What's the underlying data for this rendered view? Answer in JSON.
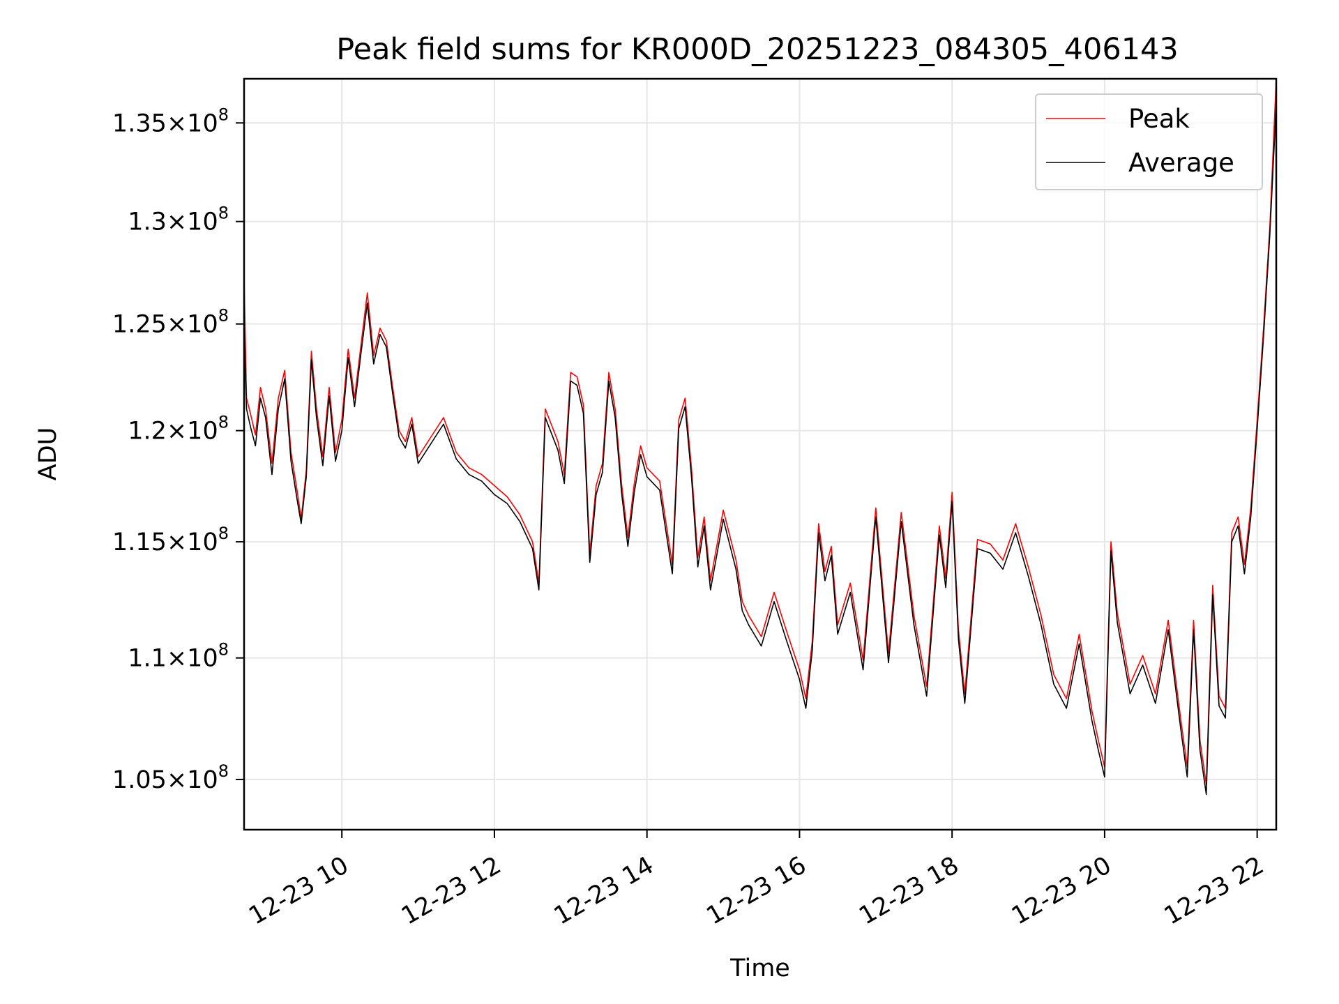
{
  "chart_data": {
    "type": "line",
    "title": "Peak field sums for KR000D_20251223_084305_406143",
    "xlabel": "Time",
    "ylabel": "ADU",
    "x_axis_type": "datetime",
    "x_range": [
      "2025-12-23T08:43:05",
      "2025-12-23T22:15:00"
    ],
    "y_scale": "log",
    "ylim": [
      103000000,
      137300000
    ],
    "grid": true,
    "legend_position": "upper right",
    "x_ticks": [
      {
        "t": "2025-12-23T10:00:00",
        "label": "12-23 10"
      },
      {
        "t": "2025-12-23T12:00:00",
        "label": "12-23 12"
      },
      {
        "t": "2025-12-23T14:00:00",
        "label": "12-23 14"
      },
      {
        "t": "2025-12-23T16:00:00",
        "label": "12-23 16"
      },
      {
        "t": "2025-12-23T18:00:00",
        "label": "12-23 18"
      },
      {
        "t": "2025-12-23T20:00:00",
        "label": "12-23 20"
      },
      {
        "t": "2025-12-23T22:00:00",
        "label": "12-23 22"
      }
    ],
    "y_ticks": [
      {
        "value": 105000000,
        "mantissa": "1.05",
        "exp": "8"
      },
      {
        "value": 110000000,
        "mantissa": "1.1",
        "exp": "8"
      },
      {
        "value": 115000000,
        "mantissa": "1.15",
        "exp": "8"
      },
      {
        "value": 120000000,
        "mantissa": "1.2",
        "exp": "8"
      },
      {
        "value": 125000000,
        "mantissa": "1.25",
        "exp": "8"
      },
      {
        "value": 130000000,
        "mantissa": "1.3",
        "exp": "8"
      },
      {
        "value": 135000000,
        "mantissa": "1.35",
        "exp": "8"
      }
    ],
    "series": [
      {
        "name": "Peak",
        "color": "#ff0000",
        "x": [
          "2025-12-23T08:43:05",
          "2025-12-23T08:45",
          "2025-12-23T08:48",
          "2025-12-23T08:52",
          "2025-12-23T08:56",
          "2025-12-23T09:00",
          "2025-12-23T09:05",
          "2025-12-23T09:10",
          "2025-12-23T09:15",
          "2025-12-23T09:20",
          "2025-12-23T09:25",
          "2025-12-23T09:28",
          "2025-12-23T09:32",
          "2025-12-23T09:36",
          "2025-12-23T09:40",
          "2025-12-23T09:45",
          "2025-12-23T09:50",
          "2025-12-23T09:55",
          "2025-12-23T10:00",
          "2025-12-23T10:05",
          "2025-12-23T10:10",
          "2025-12-23T10:15",
          "2025-12-23T10:20",
          "2025-12-23T10:25",
          "2025-12-23T10:30",
          "2025-12-23T10:35",
          "2025-12-23T10:40",
          "2025-12-23T10:45",
          "2025-12-23T10:50",
          "2025-12-23T10:55",
          "2025-12-23T11:00",
          "2025-12-23T11:10",
          "2025-12-23T11:20",
          "2025-12-23T11:30",
          "2025-12-23T11:40",
          "2025-12-23T11:50",
          "2025-12-23T12:00",
          "2025-12-23T12:10",
          "2025-12-23T12:20",
          "2025-12-23T12:30",
          "2025-12-23T12:35",
          "2025-12-23T12:40",
          "2025-12-23T12:50",
          "2025-12-23T12:55",
          "2025-12-23T13:00",
          "2025-12-23T13:05",
          "2025-12-23T13:10",
          "2025-12-23T13:15",
          "2025-12-23T13:20",
          "2025-12-23T13:25",
          "2025-12-23T13:30",
          "2025-12-23T13:35",
          "2025-12-23T13:40",
          "2025-12-23T13:45",
          "2025-12-23T13:50",
          "2025-12-23T13:55",
          "2025-12-23T14:00",
          "2025-12-23T14:10",
          "2025-12-23T14:20",
          "2025-12-23T14:25",
          "2025-12-23T14:30",
          "2025-12-23T14:35",
          "2025-12-23T14:40",
          "2025-12-23T14:45",
          "2025-12-23T14:50",
          "2025-12-23T15:00",
          "2025-12-23T15:10",
          "2025-12-23T15:15",
          "2025-12-23T15:20",
          "2025-12-23T15:30",
          "2025-12-23T15:40",
          "2025-12-23T15:50",
          "2025-12-23T16:00",
          "2025-12-23T16:05",
          "2025-12-23T16:10",
          "2025-12-23T16:15",
          "2025-12-23T16:20",
          "2025-12-23T16:25",
          "2025-12-23T16:30",
          "2025-12-23T16:40",
          "2025-12-23T16:50",
          "2025-12-23T17:00",
          "2025-12-23T17:10",
          "2025-12-23T17:20",
          "2025-12-23T17:30",
          "2025-12-23T17:40",
          "2025-12-23T17:50",
          "2025-12-23T17:55",
          "2025-12-23T18:00",
          "2025-12-23T18:05",
          "2025-12-23T18:10",
          "2025-12-23T18:20",
          "2025-12-23T18:30",
          "2025-12-23T18:40",
          "2025-12-23T18:50",
          "2025-12-23T19:00",
          "2025-12-23T19:10",
          "2025-12-23T19:20",
          "2025-12-23T19:30",
          "2025-12-23T19:40",
          "2025-12-23T19:50",
          "2025-12-23T19:55",
          "2025-12-23T20:00",
          "2025-12-23T20:05",
          "2025-12-23T20:10",
          "2025-12-23T20:20",
          "2025-12-23T20:30",
          "2025-12-23T20:40",
          "2025-12-23T20:50",
          "2025-12-23T21:00",
          "2025-12-23T21:05",
          "2025-12-23T21:10",
          "2025-12-23T21:15",
          "2025-12-23T21:20",
          "2025-12-23T21:25",
          "2025-12-23T21:30",
          "2025-12-23T21:35",
          "2025-12-23T21:40",
          "2025-12-23T21:45",
          "2025-12-23T21:50",
          "2025-12-23T21:55",
          "2025-12-23T22:00",
          "2025-12-23T22:05",
          "2025-12-23T22:10",
          "2025-12-23T22:15"
        ],
        "values": [
          127200000,
          121500000,
          120800000,
          119800000,
          122000000,
          121000000,
          118500000,
          121500000,
          122800000,
          119000000,
          117200000,
          116000000,
          118200000,
          123700000,
          121000000,
          118800000,
          122000000,
          119000000,
          120500000,
          123800000,
          121500000,
          124000000,
          126500000,
          123500000,
          124800000,
          124200000,
          122000000,
          120000000,
          119500000,
          120600000,
          118800000,
          119700000,
          120600000,
          119000000,
          118300000,
          118000000,
          117500000,
          117000000,
          116200000,
          115000000,
          113200000,
          121000000,
          119500000,
          118000000,
          122700000,
          122500000,
          121200000,
          114500000,
          117500000,
          118500000,
          122700000,
          121000000,
          117600000,
          115200000,
          117600000,
          119300000,
          118300000,
          117700000,
          114000000,
          120500000,
          121500000,
          118300000,
          114300000,
          116100000,
          113300000,
          116400000,
          114200000,
          112400000,
          111800000,
          110900000,
          112800000,
          111100000,
          109500000,
          108300000,
          110700000,
          115800000,
          113700000,
          114800000,
          111400000,
          113200000,
          109900000,
          116500000,
          110200000,
          116300000,
          111800000,
          108800000,
          115700000,
          113400000,
          117200000,
          111200000,
          108500000,
          115100000,
          114900000,
          114200000,
          115800000,
          113900000,
          111800000,
          109300000,
          108300000,
          111000000,
          107800000,
          106600000,
          105500000,
          115000000,
          111900000,
          108900000,
          110100000,
          108500000,
          111600000,
          107400000,
          105500000,
          111600000,
          106600000,
          104800000,
          113100000,
          108400000,
          107900000,
          115400000,
          116100000,
          114000000,
          116500000,
          120500000,
          124800000,
          129800000,
          137300000
        ]
      },
      {
        "name": "Average",
        "color": "#000000",
        "x": [
          "2025-12-23T08:43:05",
          "2025-12-23T08:45",
          "2025-12-23T08:48",
          "2025-12-23T08:52",
          "2025-12-23T08:56",
          "2025-12-23T09:00",
          "2025-12-23T09:05",
          "2025-12-23T09:10",
          "2025-12-23T09:15",
          "2025-12-23T09:20",
          "2025-12-23T09:25",
          "2025-12-23T09:28",
          "2025-12-23T09:32",
          "2025-12-23T09:36",
          "2025-12-23T09:40",
          "2025-12-23T09:45",
          "2025-12-23T09:50",
          "2025-12-23T09:55",
          "2025-12-23T10:00",
          "2025-12-23T10:05",
          "2025-12-23T10:10",
          "2025-12-23T10:15",
          "2025-12-23T10:20",
          "2025-12-23T10:25",
          "2025-12-23T10:30",
          "2025-12-23T10:35",
          "2025-12-23T10:40",
          "2025-12-23T10:45",
          "2025-12-23T10:50",
          "2025-12-23T10:55",
          "2025-12-23T11:00",
          "2025-12-23T11:10",
          "2025-12-23T11:20",
          "2025-12-23T11:30",
          "2025-12-23T11:40",
          "2025-12-23T11:50",
          "2025-12-23T12:00",
          "2025-12-23T12:10",
          "2025-12-23T12:20",
          "2025-12-23T12:30",
          "2025-12-23T12:35",
          "2025-12-23T12:40",
          "2025-12-23T12:50",
          "2025-12-23T12:55",
          "2025-12-23T13:00",
          "2025-12-23T13:05",
          "2025-12-23T13:10",
          "2025-12-23T13:15",
          "2025-12-23T13:20",
          "2025-12-23T13:25",
          "2025-12-23T13:30",
          "2025-12-23T13:35",
          "2025-12-23T13:40",
          "2025-12-23T13:45",
          "2025-12-23T13:50",
          "2025-12-23T13:55",
          "2025-12-23T14:00",
          "2025-12-23T14:10",
          "2025-12-23T14:20",
          "2025-12-23T14:25",
          "2025-12-23T14:30",
          "2025-12-23T14:35",
          "2025-12-23T14:40",
          "2025-12-23T14:45",
          "2025-12-23T14:50",
          "2025-12-23T15:00",
          "2025-12-23T15:10",
          "2025-12-23T15:15",
          "2025-12-23T15:20",
          "2025-12-23T15:30",
          "2025-12-23T15:40",
          "2025-12-23T15:50",
          "2025-12-23T16:00",
          "2025-12-23T16:05",
          "2025-12-23T16:10",
          "2025-12-23T16:15",
          "2025-12-23T16:20",
          "2025-12-23T16:25",
          "2025-12-23T16:30",
          "2025-12-23T16:40",
          "2025-12-23T16:50",
          "2025-12-23T17:00",
          "2025-12-23T17:10",
          "2025-12-23T17:20",
          "2025-12-23T17:30",
          "2025-12-23T17:40",
          "2025-12-23T17:50",
          "2025-12-23T17:55",
          "2025-12-23T18:00",
          "2025-12-23T18:05",
          "2025-12-23T18:10",
          "2025-12-23T18:20",
          "2025-12-23T18:30",
          "2025-12-23T18:40",
          "2025-12-23T18:50",
          "2025-12-23T19:00",
          "2025-12-23T19:10",
          "2025-12-23T19:20",
          "2025-12-23T19:30",
          "2025-12-23T19:40",
          "2025-12-23T19:50",
          "2025-12-23T19:55",
          "2025-12-23T20:00",
          "2025-12-23T20:05",
          "2025-12-23T20:10",
          "2025-12-23T20:20",
          "2025-12-23T20:30",
          "2025-12-23T20:40",
          "2025-12-23T20:50",
          "2025-12-23T21:00",
          "2025-12-23T21:05",
          "2025-12-23T21:10",
          "2025-12-23T21:15",
          "2025-12-23T21:20",
          "2025-12-23T21:25",
          "2025-12-23T21:30",
          "2025-12-23T21:35",
          "2025-12-23T21:40",
          "2025-12-23T21:45",
          "2025-12-23T21:50",
          "2025-12-23T21:55",
          "2025-12-23T22:00",
          "2025-12-23T22:05",
          "2025-12-23T22:10",
          "2025-12-23T22:15"
        ],
        "values": [
          124800000,
          121000000,
          120200000,
          119300000,
          121500000,
          120600000,
          118000000,
          121000000,
          122400000,
          118600000,
          116800000,
          115800000,
          117900000,
          123300000,
          120600000,
          118400000,
          121600000,
          118600000,
          120000000,
          123400000,
          121100000,
          123600000,
          126000000,
          123100000,
          124500000,
          123900000,
          121700000,
          119700000,
          119200000,
          120300000,
          118500000,
          119400000,
          120300000,
          118700000,
          118000000,
          117700000,
          117100000,
          116700000,
          115900000,
          114700000,
          112900000,
          120600000,
          119100000,
          117600000,
          122300000,
          122100000,
          120800000,
          114100000,
          117100000,
          118100000,
          122300000,
          120600000,
          117200000,
          114800000,
          117200000,
          118900000,
          117900000,
          117300000,
          113600000,
          120100000,
          121100000,
          117900000,
          113900000,
          115700000,
          112900000,
          116000000,
          113800000,
          112000000,
          111400000,
          110500000,
          112400000,
          110700000,
          109100000,
          107900000,
          110300000,
          115400000,
          113300000,
          114400000,
          111000000,
          112800000,
          109500000,
          116100000,
          109800000,
          115900000,
          111400000,
          108400000,
          115300000,
          113000000,
          116800000,
          110800000,
          108100000,
          114700000,
          114500000,
          113800000,
          115400000,
          113500000,
          111400000,
          108900000,
          107900000,
          110600000,
          107400000,
          106200000,
          105100000,
          114600000,
          111500000,
          108500000,
          109700000,
          108100000,
          111200000,
          107000000,
          105100000,
          111200000,
          106200000,
          104400000,
          112700000,
          108000000,
          107500000,
          115000000,
          115700000,
          113600000,
          116100000,
          120100000,
          124400000,
          129400000,
          136000000
        ]
      }
    ]
  }
}
